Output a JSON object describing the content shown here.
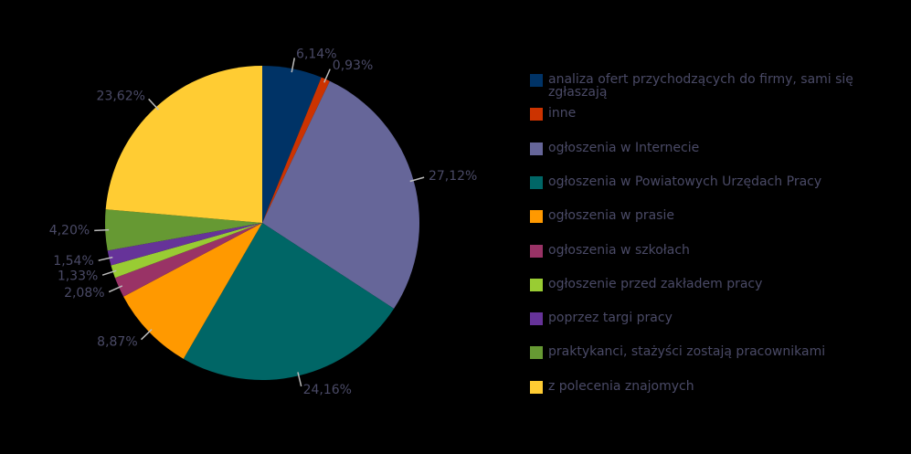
{
  "chart_data": {
    "type": "pie",
    "categories": [
      "analiza ofert przychodzących do firmy, sami się zgłaszają",
      "inne",
      "ogłoszenia w Internecie",
      "ogłoszenia w Powiatowych Urzędach Pracy",
      "ogłoszenia w prasie",
      "ogłoszenia w szkołach",
      "ogłoszenie przed zakładem pracy",
      "poprzez targi pracy",
      "praktykanci, stażyści zostają pracownikami",
      "z polecenia znajomych"
    ],
    "values": [
      6.14,
      0.93,
      27.12,
      24.16,
      8.87,
      2.08,
      1.33,
      1.54,
      4.2,
      23.62
    ],
    "value_labels": [
      "6,14%",
      "0,93%",
      "27,12%",
      "24,16%",
      "8,87%",
      "2,08%",
      "1,33%",
      "1,54%",
      "4,20%",
      "23,62%"
    ],
    "colors": [
      "#003366",
      "#cc3300",
      "#666699",
      "#006666",
      "#ff9900",
      "#993366",
      "#99cc33",
      "#663399",
      "#669933",
      "#ffcc33"
    ],
    "legend": "right"
  }
}
